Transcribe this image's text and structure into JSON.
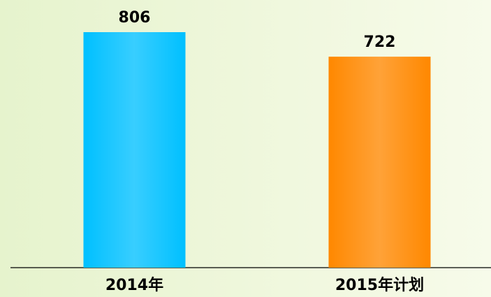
{
  "chart_data": {
    "type": "bar",
    "categories": [
      "2014年",
      "2015年计划"
    ],
    "values": [
      806,
      722
    ],
    "colors": [
      "#00c0ff",
      "#ff8800"
    ]
  }
}
